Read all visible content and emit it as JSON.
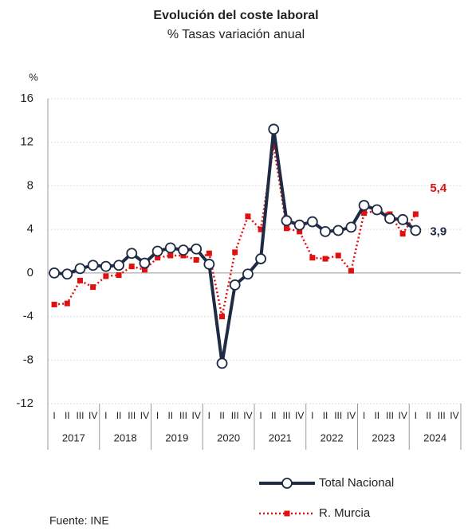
{
  "chart_data": {
    "type": "line",
    "title": "Evolución del coste laboral",
    "subtitle": "% Tasas variación anual",
    "y_label": "%",
    "source": "Fuente: INE",
    "categories": [
      "I",
      "II",
      "III",
      "IV",
      "I",
      "II",
      "III",
      "IV",
      "I",
      "II",
      "III",
      "IV",
      "I",
      "II",
      "III",
      "IV",
      "I",
      "II",
      "III",
      "IV",
      "I",
      "II",
      "III",
      "IV",
      "I",
      "II",
      "III",
      "IV",
      "I",
      "II",
      "III",
      "IV"
    ],
    "years": [
      "2017",
      "2018",
      "2019",
      "2020",
      "2021",
      "2022",
      "2023",
      "2024"
    ],
    "ylim": [
      -12,
      16
    ],
    "yticks": [
      -12,
      -8,
      -4,
      0,
      4,
      8,
      12,
      16
    ],
    "grid": true,
    "series": [
      {
        "name": "Total Nacional",
        "color": "#1f2a44",
        "values": [
          0.0,
          -0.1,
          0.4,
          0.7,
          0.6,
          0.7,
          1.8,
          0.9,
          2.0,
          2.3,
          2.1,
          2.2,
          0.8,
          -8.3,
          -1.1,
          -0.1,
          1.3,
          13.2,
          4.8,
          4.4,
          4.7,
          3.8,
          3.9,
          4.2,
          6.2,
          5.8,
          5.0,
          4.9,
          3.9,
          null,
          null,
          null
        ],
        "value_labels": [
          null,
          null,
          null,
          null,
          null,
          null,
          null,
          null,
          null,
          null,
          null,
          null,
          null,
          null,
          null,
          null,
          null,
          null,
          null,
          null,
          null,
          null,
          null,
          null,
          null,
          null,
          null,
          null,
          "3,9",
          null,
          null,
          null
        ]
      },
      {
        "name": "R. Murcia",
        "color": "#e01010",
        "values": [
          -2.9,
          -2.8,
          -0.7,
          -1.3,
          -0.3,
          -0.2,
          0.6,
          0.3,
          1.4,
          1.6,
          1.6,
          1.2,
          1.8,
          -4.0,
          1.9,
          5.2,
          4.0,
          11.7,
          4.1,
          3.8,
          1.4,
          1.3,
          1.6,
          0.2,
          5.5,
          5.7,
          5.4,
          3.6,
          5.4,
          null,
          null,
          null
        ],
        "value_labels": [
          null,
          null,
          null,
          null,
          null,
          null,
          null,
          null,
          null,
          null,
          null,
          null,
          null,
          null,
          null,
          null,
          null,
          null,
          null,
          null,
          null,
          null,
          null,
          null,
          null,
          null,
          null,
          null,
          "5,4",
          null,
          null,
          null
        ]
      }
    ]
  }
}
